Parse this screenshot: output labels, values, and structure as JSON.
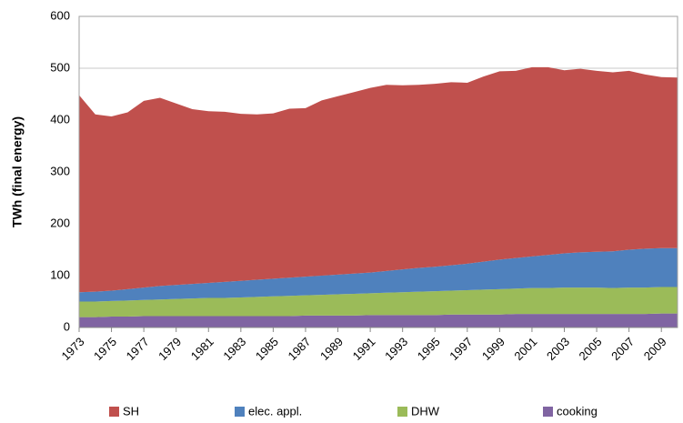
{
  "chart_data": {
    "type": "area",
    "stacked": true,
    "y_label": "TWh (final energy)",
    "x": [
      1973,
      1974,
      1975,
      1976,
      1977,
      1978,
      1979,
      1980,
      1981,
      1982,
      1983,
      1984,
      1985,
      1986,
      1987,
      1988,
      1989,
      1990,
      1991,
      1992,
      1993,
      1994,
      1995,
      1996,
      1997,
      1998,
      1999,
      2000,
      2001,
      2002,
      2003,
      2004,
      2005,
      2006,
      2007,
      2008,
      2009,
      2010
    ],
    "xlim": [
      1973,
      2010
    ],
    "xticks": [
      1973,
      1975,
      1977,
      1979,
      1981,
      1983,
      1985,
      1987,
      1989,
      1991,
      1993,
      1995,
      1997,
      1999,
      2001,
      2003,
      2005,
      2007,
      2009
    ],
    "ylim": [
      0,
      600
    ],
    "yticks": [
      0,
      100,
      200,
      300,
      400,
      500,
      600
    ],
    "grid": true,
    "legend": "bottom",
    "series": [
      {
        "name": "SH",
        "color": "#c0504d",
        "values": [
          380,
          342,
          336,
          341,
          360,
          363,
          350,
          337,
          331,
          328,
          322,
          319,
          319,
          326,
          325,
          338,
          344,
          350,
          356,
          359,
          355,
          353,
          353,
          353,
          349,
          357,
          363,
          361,
          365,
          362,
          353,
          354,
          349,
          345,
          345,
          336,
          330,
          329
        ]
      },
      {
        "name": "elec. appl.",
        "color": "#4f81bd",
        "values": [
          18,
          19,
          20,
          22,
          24,
          26,
          27,
          28,
          29,
          31,
          32,
          33,
          34,
          35,
          36,
          37,
          38,
          39,
          40,
          42,
          44,
          46,
          47,
          49,
          51,
          54,
          57,
          59,
          61,
          64,
          66,
          68,
          69,
          71,
          73,
          75,
          75,
          75
        ]
      },
      {
        "name": "DHW",
        "color": "#9bbb59",
        "values": [
          30,
          30,
          30,
          31,
          31,
          32,
          33,
          34,
          35,
          35,
          36,
          37,
          38,
          39,
          39,
          40,
          41,
          42,
          42,
          43,
          44,
          45,
          46,
          46,
          47,
          48,
          49,
          49,
          50,
          50,
          51,
          51,
          51,
          50,
          51,
          51,
          51,
          51
        ]
      },
      {
        "name": "cooking",
        "color": "#8064a2",
        "values": [
          20,
          20,
          21,
          21,
          22,
          22,
          22,
          22,
          22,
          22,
          22,
          22,
          22,
          22,
          23,
          23,
          23,
          23,
          24,
          24,
          24,
          24,
          24,
          25,
          25,
          25,
          25,
          26,
          26,
          26,
          26,
          26,
          26,
          26,
          26,
          26,
          27,
          27
        ]
      }
    ]
  }
}
